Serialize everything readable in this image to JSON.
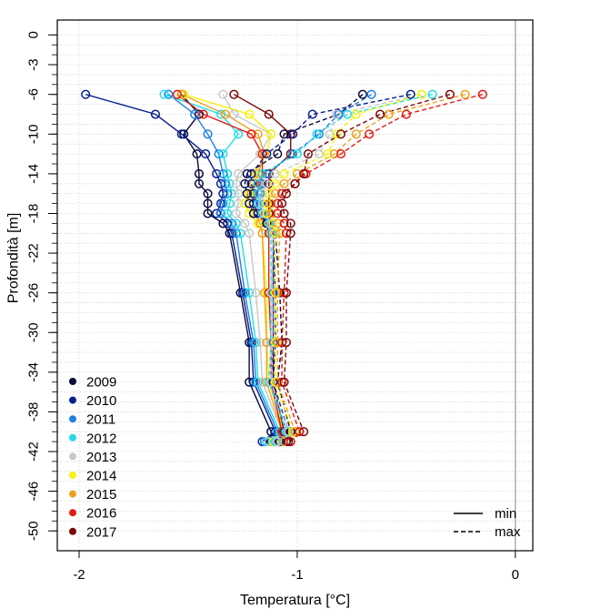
{
  "chart_data": {
    "type": "line",
    "title": "",
    "xlabel": "Temperatura [°C]",
    "ylabel": "Profondità [m]",
    "xlim": [
      -2.1,
      0.08
    ],
    "ylim": [
      -52,
      1.5
    ],
    "x_ticks": [
      -2,
      -1,
      0
    ],
    "x_tick_labels": [
      "-2",
      "-1",
      "0"
    ],
    "y_ticks": [
      0,
      -3,
      -6,
      -10,
      -14,
      -18,
      -22,
      -26,
      -30,
      -34,
      -38,
      -42,
      -46,
      -50
    ],
    "y_tick_labels": [
      "0",
      "-3",
      "-6",
      "-10",
      "-14",
      "-18",
      "-22",
      "-26",
      "-30",
      "-34",
      "-38",
      "-42",
      "-46",
      "-50"
    ],
    "grid": true,
    "vertical_reference_line_x": 0,
    "depths": [
      -6,
      -8,
      -10,
      -12,
      -14,
      -15,
      -16,
      -17,
      -18,
      -19,
      -20,
      -26,
      -31,
      -35,
      -40,
      -41
    ],
    "legend_years": {
      "position": "bottom-left",
      "entries": [
        {
          "label": "2009",
          "color": "#0a0a3c"
        },
        {
          "label": "2010",
          "color": "#071f8e"
        },
        {
          "label": "2011",
          "color": "#1e7fe6"
        },
        {
          "label": "2012",
          "color": "#22dde8"
        },
        {
          "label": "2013",
          "color": "#c8c8c8"
        },
        {
          "label": "2014",
          "color": "#f4f40a"
        },
        {
          "label": "2015",
          "color": "#f0a01e"
        },
        {
          "label": "2016",
          "color": "#e41a10"
        },
        {
          "label": "2017",
          "color": "#7a0a0a"
        }
      ]
    },
    "legend_style": {
      "position": "bottom-right",
      "entries": [
        {
          "label": "min",
          "dash": "solid"
        },
        {
          "label": "max",
          "dash": "dashed"
        }
      ]
    },
    "series": [
      {
        "year": "2009",
        "kind": "min",
        "x": [
          -1.53,
          -1.45,
          -1.52,
          -1.46,
          -1.45,
          -1.45,
          -1.41,
          -1.41,
          -1.41,
          -1.34,
          -1.31,
          -1.26,
          -1.22,
          -1.22,
          -1.12,
          -1.12
        ]
      },
      {
        "year": "2010",
        "kind": "min",
        "x": [
          -1.97,
          -1.65,
          -1.53,
          -1.42,
          -1.37,
          -1.35,
          -1.34,
          -1.35,
          -1.37,
          -1.32,
          -1.3,
          -1.25,
          -1.21,
          -1.2,
          -1.1,
          -1.16
        ]
      },
      {
        "year": "2011",
        "kind": "min",
        "x": [
          -1.59,
          -1.47,
          -1.41,
          -1.36,
          -1.34,
          -1.33,
          -1.32,
          -1.34,
          -1.35,
          -1.3,
          -1.28,
          -1.24,
          -1.2,
          -1.19,
          -1.09,
          -1.15
        ]
      },
      {
        "year": "2012",
        "kind": "min",
        "x": [
          -1.61,
          -1.35,
          -1.27,
          -1.34,
          -1.32,
          -1.31,
          -1.3,
          -1.31,
          -1.32,
          -1.28,
          -1.26,
          -1.22,
          -1.19,
          -1.18,
          -1.08,
          -1.14
        ]
      },
      {
        "year": "2013",
        "kind": "min",
        "x": [
          -1.34,
          -1.29,
          -1.12,
          -1.17,
          -1.27,
          -1.28,
          -1.27,
          -1.27,
          -1.28,
          -1.24,
          -1.22,
          -1.19,
          -1.17,
          -1.16,
          -1.07,
          -1.13
        ]
      },
      {
        "year": "2014",
        "kind": "min",
        "x": [
          -1.52,
          -1.22,
          -1.12,
          -1.14,
          -1.19,
          -1.2,
          -1.22,
          -1.24,
          -1.22,
          -1.18,
          -1.16,
          -1.14,
          -1.14,
          -1.13,
          -1.06,
          -1.11
        ]
      },
      {
        "year": "2015",
        "kind": "min",
        "x": [
          -1.53,
          -1.33,
          -1.18,
          -1.15,
          -1.18,
          -1.2,
          -1.21,
          -1.2,
          -1.2,
          -1.17,
          -1.16,
          -1.15,
          -1.14,
          -1.14,
          -1.07,
          -1.1
        ]
      },
      {
        "year": "2016",
        "kind": "min",
        "x": [
          -1.55,
          -1.43,
          -1.21,
          -1.16,
          -1.16,
          -1.17,
          -1.18,
          -1.2,
          -1.18,
          -1.14,
          -1.13,
          -1.13,
          -1.12,
          -1.12,
          -1.07,
          -1.09
        ]
      },
      {
        "year": "2017",
        "kind": "min",
        "x": [
          -1.29,
          -1.13,
          -1.03,
          -1.03,
          -1.13,
          -1.13,
          -1.13,
          -1.13,
          -1.13,
          -1.12,
          -1.11,
          -1.11,
          -1.11,
          -1.11,
          -1.06,
          -1.08
        ]
      },
      {
        "year": "2009",
        "kind": "max",
        "x": [
          -0.7,
          -0.81,
          -1.06,
          -1.09,
          -1.23,
          -1.24,
          -1.23,
          -1.22,
          -1.2,
          -1.14,
          -1.1,
          -1.08,
          -1.07,
          -1.09,
          -1.03,
          -1.05
        ]
      },
      {
        "year": "2010",
        "kind": "max",
        "x": [
          -0.48,
          -0.93,
          -1.02,
          -1.14,
          -1.21,
          -1.21,
          -1.2,
          -1.2,
          -1.18,
          -1.13,
          -1.11,
          -1.1,
          -1.1,
          -1.11,
          -1.04,
          -1.08
        ]
      },
      {
        "year": "2011",
        "kind": "max",
        "x": [
          -0.66,
          -0.81,
          -0.9,
          -1.02,
          -1.14,
          -1.16,
          -1.17,
          -1.17,
          -1.16,
          -1.13,
          -1.11,
          -1.11,
          -1.11,
          -1.12,
          -1.05,
          -1.09
        ]
      },
      {
        "year": "2012",
        "kind": "max",
        "x": [
          -0.38,
          -0.77,
          -0.91,
          -1.0,
          -1.16,
          -1.18,
          -1.18,
          -1.18,
          -1.16,
          -1.13,
          -1.12,
          -1.12,
          -1.12,
          -1.13,
          -1.05,
          -1.1
        ]
      },
      {
        "year": "2013",
        "kind": "max",
        "x": [
          -0.43,
          -0.82,
          -0.85,
          -0.9,
          -1.1,
          -1.14,
          -1.16,
          -1.16,
          -1.15,
          -1.12,
          -1.11,
          -1.12,
          -1.12,
          -1.12,
          -1.04,
          -1.09
        ]
      },
      {
        "year": "2014",
        "kind": "max",
        "x": [
          -0.43,
          -0.73,
          -0.82,
          -0.86,
          -1.06,
          -1.1,
          -1.13,
          -1.14,
          -1.14,
          -1.11,
          -1.1,
          -1.1,
          -1.1,
          -1.1,
          -1.02,
          -1.06
        ]
      },
      {
        "year": "2015",
        "kind": "max",
        "x": [
          -0.23,
          -0.58,
          -0.73,
          -0.83,
          -1.0,
          -1.06,
          -1.1,
          -1.12,
          -1.12,
          -1.09,
          -1.08,
          -1.09,
          -1.09,
          -1.09,
          -1.01,
          -1.06
        ]
      },
      {
        "year": "2016",
        "kind": "max",
        "x": [
          -0.15,
          -0.5,
          -0.67,
          -0.8,
          -0.96,
          -1.01,
          -1.07,
          -1.09,
          -1.09,
          -1.06,
          -1.05,
          -1.06,
          -1.07,
          -1.07,
          -0.99,
          -1.03
        ]
      },
      {
        "year": "2017",
        "kind": "max",
        "x": [
          -0.3,
          -0.62,
          -0.8,
          -0.95,
          -0.97,
          -1.01,
          -1.05,
          -1.07,
          -1.06,
          -1.03,
          -1.03,
          -1.05,
          -1.05,
          -1.06,
          -0.97,
          -1.04
        ]
      }
    ]
  }
}
